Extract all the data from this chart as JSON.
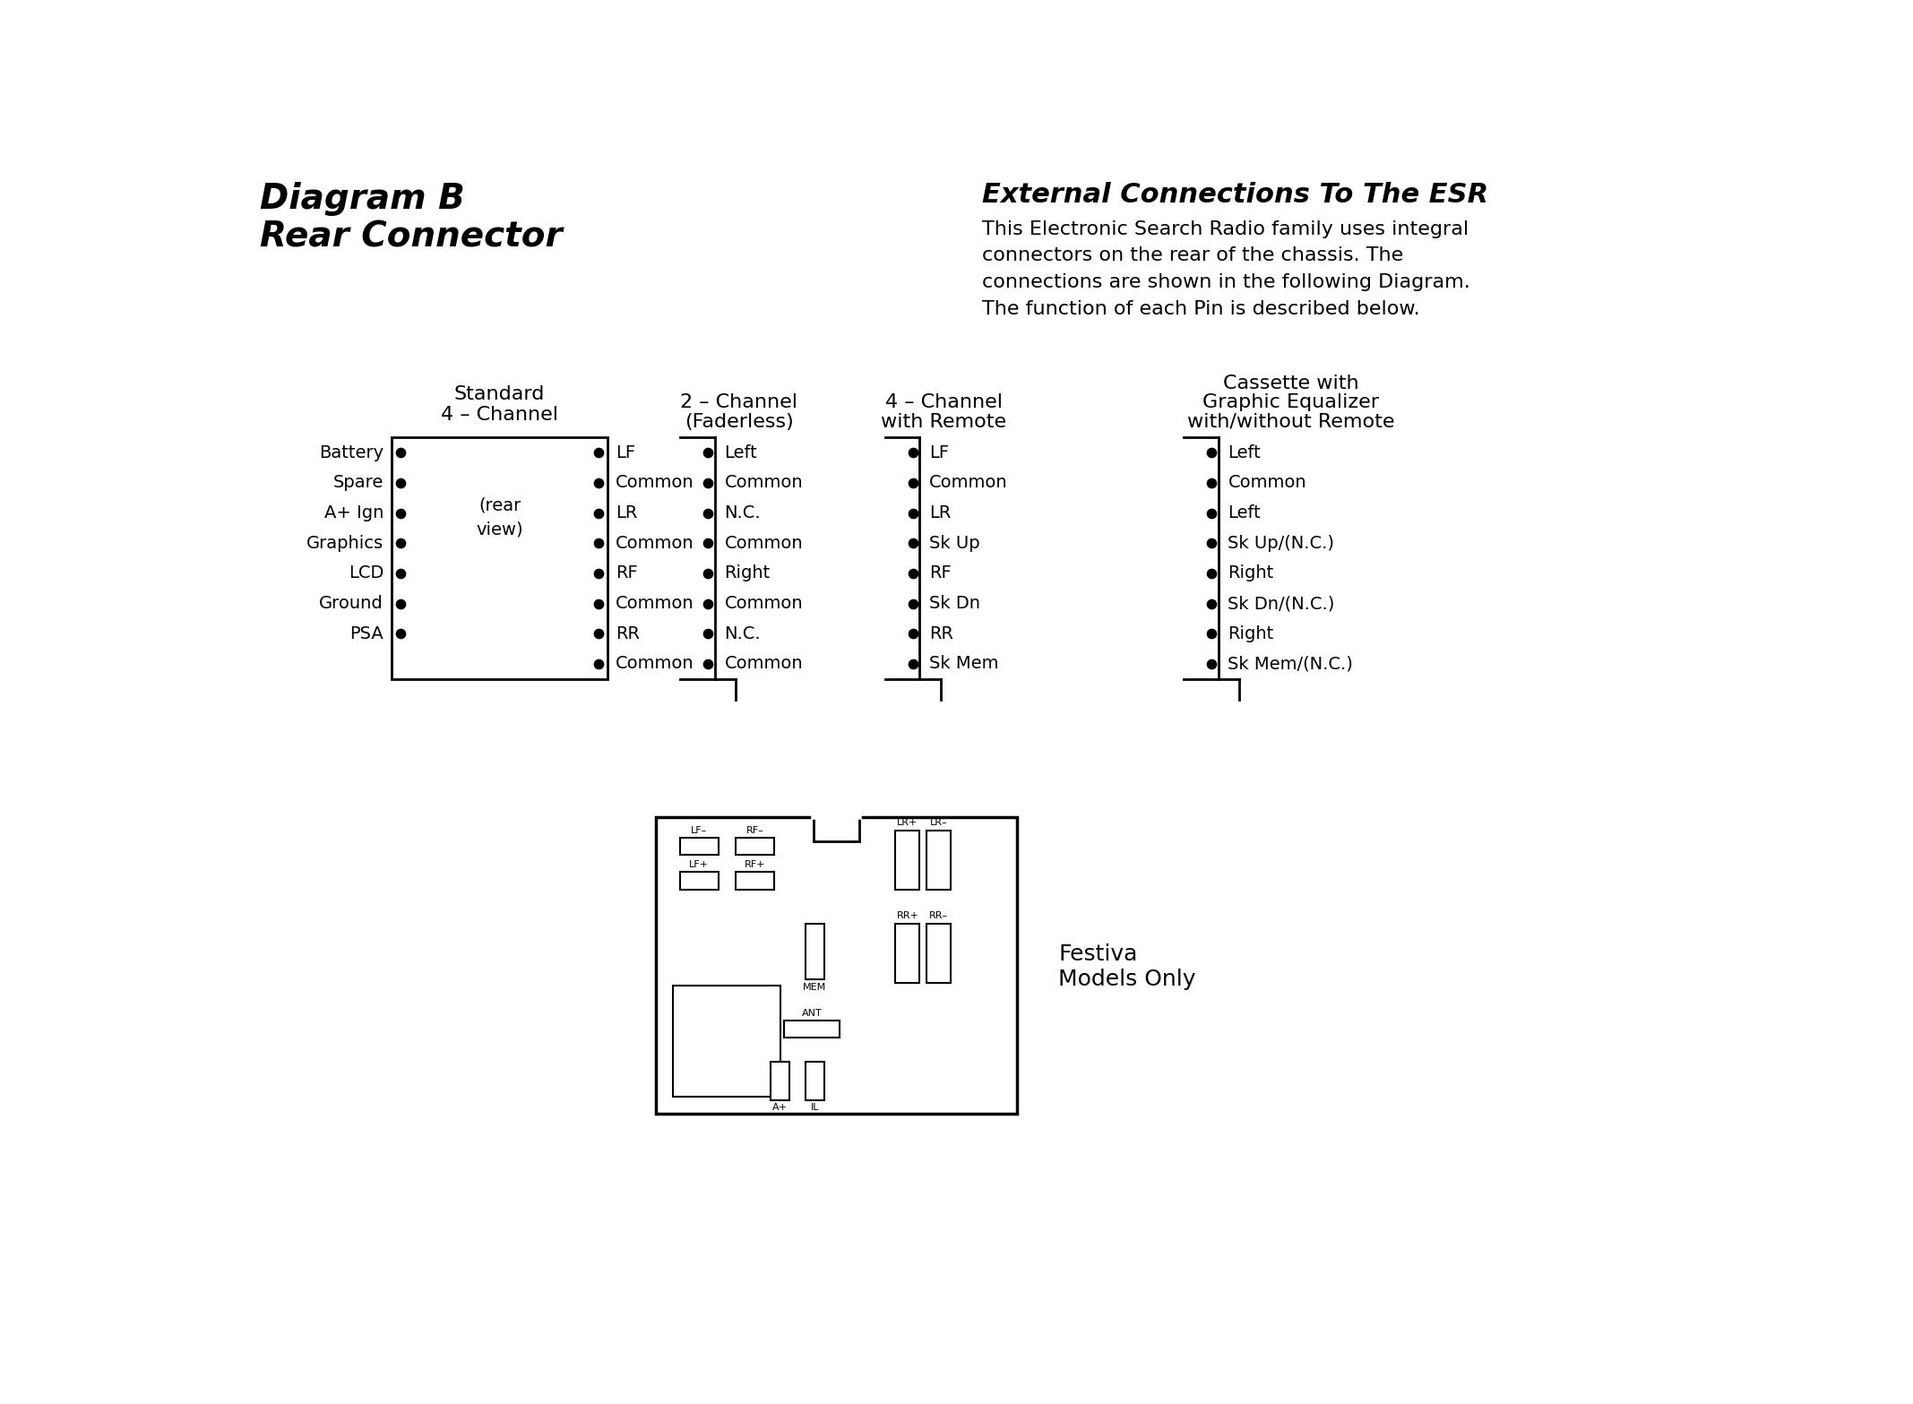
{
  "title_line1": "Diagram B",
  "title_line2": "Rear Connector",
  "right_title": "External Connections To The ESR",
  "right_body": "This Electronic Search Radio family uses integral\nconnectors on the rear of the chassis. The\nconnections are shown in the following Diagram.\nThe function of each Pin is described below.",
  "bg_color": "#ffffff",
  "text_color": "#000000",
  "connector1_title_line1": "Standard",
  "connector1_title_line2": "4 – Channel",
  "connector1_left_labels": [
    "Battery",
    "Spare",
    "A+ Ign",
    "Graphics",
    "LCD",
    "Ground",
    "PSA"
  ],
  "connector1_center_note_line1": "(rear",
  "connector1_center_note_line2": "view)",
  "connector1_right_labels": [
    "LF",
    "Common",
    "LR",
    "Common",
    "RF",
    "Common",
    "RR",
    "Common"
  ],
  "connector2_title_line1": "2 – Channel",
  "connector2_title_line2": "(Faderless)",
  "connector2_right_labels": [
    "Left",
    "Common",
    "N.C.",
    "Common",
    "Right",
    "Common",
    "N.C.",
    "Common"
  ],
  "connector3_title_line1": "4 – Channel",
  "connector3_title_line2": "with Remote",
  "connector3_right_labels": [
    "LF",
    "Common",
    "LR",
    "Sk Up",
    "RF",
    "Sk Dn",
    "RR",
    "Sk Mem"
  ],
  "connector4_title_line1": "Cassette with",
  "connector4_title_line2": "Graphic Equalizer",
  "connector4_title_line3": "with/without Remote",
  "connector4_right_labels": [
    "Left",
    "Common",
    "Left",
    "Sk Up/(N.C.)",
    "Right",
    "Sk Dn/(N.C.)",
    "Right",
    "Sk Mem/(N.C.)"
  ],
  "festiva_label_line1": "Festiva",
  "festiva_label_line2": "Models Only"
}
